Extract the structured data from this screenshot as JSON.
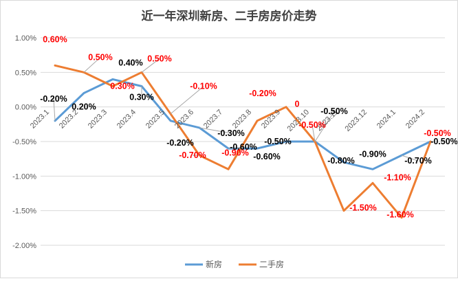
{
  "chart_data": {
    "type": "line",
    "title": "近一年深圳新房、二手房房价走势",
    "xlabel": "",
    "ylabel": "",
    "categories": [
      "2023.1",
      "2023.2",
      "2023.3",
      "2023.4",
      "2023.5",
      "2023.6",
      "2023.7",
      "2023.8",
      "2023.9",
      "2023.10",
      "2023.11",
      "2023.12",
      "2024.1",
      "2024.2"
    ],
    "ylim": [
      -2.0,
      1.0
    ],
    "yticks": [
      "1.00%",
      "0.50%",
      "0.00%",
      "-0.50%",
      "-1.00%",
      "-1.50%",
      "-2.00%"
    ],
    "ytick_values": [
      1.0,
      0.5,
      0.0,
      -0.5,
      -1.0,
      -1.5,
      -2.0
    ],
    "grid": true,
    "legend_position": "bottom",
    "series": [
      {
        "name": "新房",
        "color": "#5b9bd5",
        "values": [
          -0.2,
          0.2,
          0.4,
          0.3,
          -0.2,
          -0.3,
          -0.6,
          -0.6,
          -0.5,
          -0.5,
          -0.8,
          -0.9,
          -0.7,
          -0.5
        ],
        "labels": [
          "-0.20%",
          "0.20%",
          "0.40%",
          "0.30%",
          "-0.20%",
          "-0.30%",
          "-0.60%",
          "-0.60%",
          "-0.50%",
          "-0.50%",
          "-0.80%",
          "-0.90%",
          "-0.70%",
          "-0.50%"
        ],
        "label_color": "#000000"
      },
      {
        "name": "二手房",
        "color": "#ed7d31",
        "values": [
          0.6,
          0.5,
          0.3,
          0.5,
          -0.1,
          -0.7,
          -0.9,
          -0.2,
          0.0,
          -0.5,
          -1.5,
          -1.1,
          -1.6,
          -0.5
        ],
        "labels": [
          "0.60%",
          "0.50%",
          "0.30%",
          "0.50%",
          "-0.10%",
          "-0.70%",
          "-0.90%",
          "-0.20%",
          "0",
          "-0.50%",
          "-1.50%",
          "-1.10%",
          "-1.60%",
          "-0.50%"
        ],
        "label_color": "#ff0000"
      }
    ]
  }
}
